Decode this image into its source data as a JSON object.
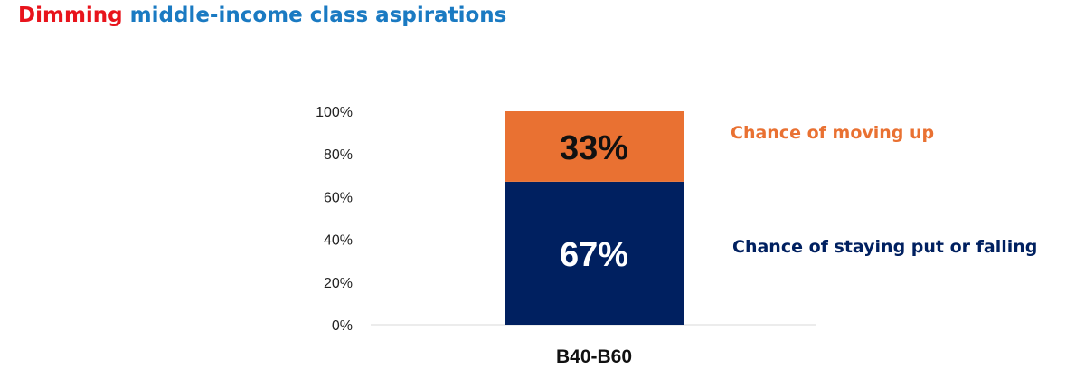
{
  "title": {
    "part1": "Dimming",
    "part2": "middle-income class aspirations"
  },
  "colors": {
    "title_red": "#e8141c",
    "title_blue": "#1a7ac2",
    "up": "#e97132",
    "stay": "#002060"
  },
  "chart_data": {
    "type": "bar",
    "stacked": true,
    "categories": [
      "B40-B60"
    ],
    "series": [
      {
        "name": "Chance of staying put or falling",
        "values": [
          67
        ],
        "label": "67%"
      },
      {
        "name": "Chance of moving up",
        "values": [
          33
        ],
        "label": "33%"
      }
    ],
    "ylim": [
      0,
      100
    ],
    "yticks": [
      "0%",
      "20%",
      "40%",
      "60%",
      "80%",
      "100%"
    ],
    "grid": false,
    "legend": "right"
  }
}
